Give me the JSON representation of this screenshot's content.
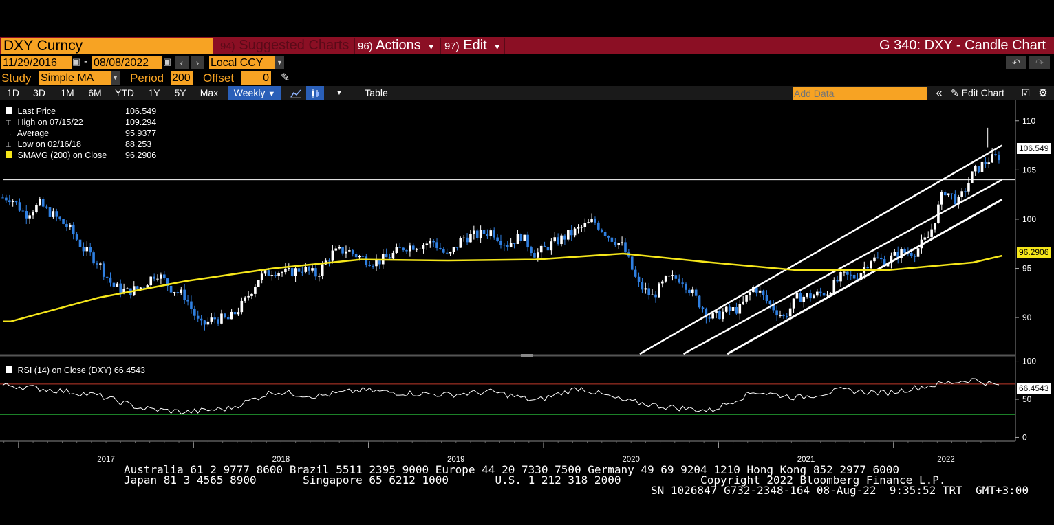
{
  "header": {
    "ticker": "DXY Curncy",
    "suggested_num": "94)",
    "suggested_label": "Suggested Charts",
    "actions_num": "96)",
    "actions_label": "Actions",
    "edit_num": "97)",
    "edit_label": "Edit",
    "title": "G 340: DXY - Candle Chart"
  },
  "dates": {
    "start": "11/29/2016",
    "end": "08/08/2022",
    "separator": "-",
    "currency": "Local CCY"
  },
  "study": {
    "label": "Study",
    "value": "Simple MA",
    "period_label": "Period",
    "period": "200",
    "offset_label": "Offset",
    "offset": "0"
  },
  "toolbar": {
    "ranges": [
      "1D",
      "3D",
      "1M",
      "6M",
      "YTD",
      "1Y",
      "5Y",
      "Max"
    ],
    "frequency": "Weekly",
    "table_label": "Table",
    "add_data_placeholder": "Add Data",
    "edit_chart_label": "Edit Chart"
  },
  "legend": {
    "last_label": "Last Price",
    "last_value": "106.549",
    "high_label": "High on 07/15/22",
    "high_value": "109.294",
    "avg_label": "Average",
    "avg_value": "95.9377",
    "low_label": "Low on 02/16/18",
    "low_value": "88.253",
    "sma_label": "SMAVG (200)  on Close",
    "sma_value": "96.2906"
  },
  "rsi_legend": {
    "label": "RSI (14)  on Close (DXY)",
    "value": "66.4543"
  },
  "price_tags": {
    "last": "106.549",
    "sma": "96.2906",
    "rsi": "66.4543"
  },
  "footer": {
    "line1": "Australia 61 2 9777 8600 Brazil 5511 2395 9000 Europe 44 20 7330 7500 Germany 49 69 9204 1210 Hong Kong 852 2977 6000",
    "line2": "Japan 81 3 4565 8900       Singapore 65 6212 1000       U.S. 1 212 318 2000            Copyright 2022 Bloomberg Finance L.P.",
    "line3": "SN 1026847 G732-2348-164 08-Aug-22  9:35:52 TRT  GMT+3:00"
  },
  "colors": {
    "candle_up": "#ffffff",
    "candle_down": "#2f7fe0",
    "sma": "#f5e61a",
    "accent": "#f7a323",
    "titlebar": "#8b0f24",
    "rsi_over": "#c0392b",
    "rsi_under": "#2ecc40"
  },
  "chart_data": [
    {
      "type": "candlestick",
      "title": "G 340: DXY - Candle Chart",
      "frequency": "Weekly",
      "x_range": [
        "2016-11-29",
        "2022-08-08"
      ],
      "xticks": [
        "2017",
        "2018",
        "2019",
        "2020",
        "2021",
        "2022"
      ],
      "yticks": [
        90,
        95,
        100,
        105,
        110
      ],
      "ylim": [
        86.3,
        111.8
      ],
      "close_series": {
        "name": "Last Price",
        "x": [
          "2016-12",
          "2017-01",
          "2017-02",
          "2017-03",
          "2017-04",
          "2017-05",
          "2017-06",
          "2017-07",
          "2017-08",
          "2017-09",
          "2017-10",
          "2017-11",
          "2017-12",
          "2018-01",
          "2018-02",
          "2018-03",
          "2018-04",
          "2018-05",
          "2018-06",
          "2018-07",
          "2018-08",
          "2018-09",
          "2018-10",
          "2018-11",
          "2018-12",
          "2019-01",
          "2019-02",
          "2019-03",
          "2019-04",
          "2019-05",
          "2019-06",
          "2019-07",
          "2019-08",
          "2019-09",
          "2019-10",
          "2019-11",
          "2019-12",
          "2020-01",
          "2020-02",
          "2020-03",
          "2020-04",
          "2020-05",
          "2020-06",
          "2020-07",
          "2020-08",
          "2020-09",
          "2020-10",
          "2020-11",
          "2020-12",
          "2021-01",
          "2021-02",
          "2021-03",
          "2021-04",
          "2021-05",
          "2021-06",
          "2021-07",
          "2021-08",
          "2021-09",
          "2021-10",
          "2021-11",
          "2021-12",
          "2022-01",
          "2022-02",
          "2022-03",
          "2022-04",
          "2022-05",
          "2022-06",
          "2022-07",
          "2022-08"
        ],
        "y": [
          102.2,
          100.5,
          101.5,
          100.3,
          99.1,
          97.0,
          95.6,
          93.2,
          92.6,
          93.1,
          94.6,
          93.0,
          92.1,
          89.1,
          89.9,
          89.8,
          91.5,
          94.0,
          94.8,
          94.5,
          95.0,
          94.3,
          96.5,
          96.9,
          96.1,
          95.6,
          96.2,
          97.2,
          97.4,
          97.7,
          96.1,
          98.1,
          98.4,
          98.8,
          97.4,
          98.3,
          96.4,
          97.4,
          98.2,
          99.0,
          99.8,
          98.3,
          97.2,
          93.4,
          92.1,
          93.9,
          94.0,
          91.9,
          89.9,
          90.6,
          90.9,
          93.2,
          91.4,
          90.0,
          92.1,
          92.2,
          92.6,
          94.2,
          94.1,
          96.0,
          95.7,
          96.6,
          96.7,
          98.3,
          103.0,
          101.7,
          104.7,
          106.0,
          106.5
        ]
      },
      "markers": {
        "last": 106.549,
        "high": {
          "date": "07/15/22",
          "value": 109.294
        },
        "average": 95.9377,
        "low": {
          "date": "02/16/18",
          "value": 88.253
        }
      },
      "sma": {
        "name": "SMAVG (200) on Close",
        "last": 96.2906,
        "x": [
          "2016-12",
          "2017-06",
          "2017-12",
          "2018-06",
          "2018-12",
          "2019-06",
          "2019-12",
          "2020-06",
          "2020-12",
          "2021-06",
          "2021-12",
          "2022-06",
          "2022-08"
        ],
        "y": [
          89.6,
          92.0,
          93.7,
          95.0,
          95.9,
          95.8,
          95.9,
          96.5,
          95.6,
          94.8,
          94.8,
          95.6,
          96.29
        ]
      }
    },
    {
      "type": "line",
      "title": "RSI (14) on Close (DXY)",
      "yticks": [
        0,
        50,
        100
      ],
      "ylim": [
        -5,
        105
      ],
      "overbought": 70,
      "oversold": 30,
      "last": 66.4543,
      "x": [
        "2016-12",
        "2017-03",
        "2017-06",
        "2017-09",
        "2017-12",
        "2018-03",
        "2018-06",
        "2018-09",
        "2018-12",
        "2019-03",
        "2019-06",
        "2019-09",
        "2019-12",
        "2020-03",
        "2020-06",
        "2020-09",
        "2020-12",
        "2021-03",
        "2021-06",
        "2021-09",
        "2021-12",
        "2022-03",
        "2022-06",
        "2022-08"
      ],
      "y": [
        68,
        62,
        55,
        38,
        33,
        38,
        60,
        54,
        62,
        58,
        56,
        60,
        48,
        65,
        48,
        40,
        35,
        60,
        52,
        62,
        58,
        68,
        76,
        66.45
      ]
    }
  ]
}
